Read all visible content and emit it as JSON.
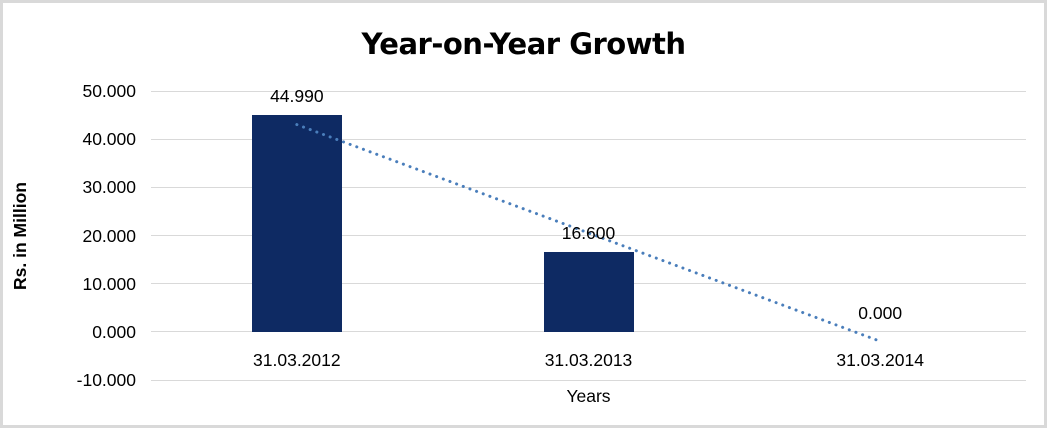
{
  "frame": {
    "background": "#ffffff",
    "border_color": "#d9d9d9"
  },
  "chart_data": {
    "type": "bar",
    "title": "Year-on-Year Growth",
    "xlabel": "Years",
    "ylabel": "Rs. in Million",
    "categories": [
      "31.03.2012",
      "31.03.2013",
      "31.03.2014"
    ],
    "values": [
      44.99,
      16.6,
      0.0
    ],
    "value_labels": [
      "44.990",
      "16.600",
      "0.000"
    ],
    "ylim": [
      -10,
      50
    ],
    "yticks": [
      50,
      40,
      30,
      20,
      10,
      0,
      -10
    ],
    "ytick_labels": [
      "50.000",
      "40.000",
      "30.000",
      "20.000",
      "10.000",
      "0.000",
      "-10.000"
    ],
    "grid": true,
    "legend": false,
    "bar_color": "#0e2a63",
    "gridline_color": "#d9d9d9",
    "trendline": {
      "type": "linear",
      "style": "dotted",
      "color": "#4a7ebb"
    }
  }
}
